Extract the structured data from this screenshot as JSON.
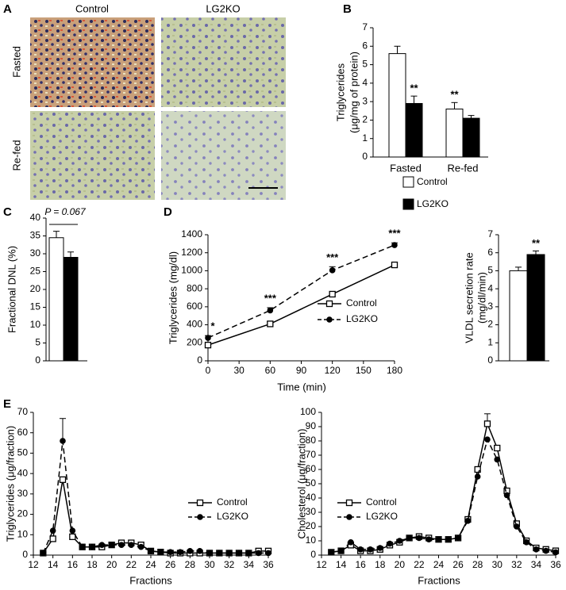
{
  "panel_labels": [
    "A",
    "B",
    "C",
    "D",
    "E"
  ],
  "micrographs": {
    "columns": [
      "Control",
      "LG2KO"
    ],
    "rows": [
      "Fasted",
      "Re-fed"
    ]
  },
  "chart_data": [
    {
      "type": "bar",
      "categories": [
        "Fasted",
        "Re-fed"
      ],
      "series": [
        {
          "name": "Control",
          "color": "#ffffff",
          "values": [
            5.6,
            2.6
          ],
          "errors": [
            0.4,
            0.35
          ]
        },
        {
          "name": "LG2KO",
          "color": "#000000",
          "values": [
            2.9,
            2.1
          ],
          "errors": [
            0.4,
            0.15
          ]
        }
      ],
      "ylim": [
        0,
        7
      ],
      "yticks": [
        0,
        1,
        2,
        3,
        4,
        5,
        6,
        7
      ],
      "ylabel": [
        "Triglycerides",
        "(μg/mg of protein)"
      ],
      "annotations": [
        "**",
        "**"
      ]
    },
    {
      "type": "bar",
      "values": [
        34.5,
        29
      ],
      "errors": [
        1.8,
        1.5
      ],
      "colors": [
        "#ffffff",
        "#000000"
      ],
      "ylim": [
        0,
        40
      ],
      "yticks": [
        0,
        5,
        10,
        15,
        20,
        25,
        30,
        35,
        40
      ],
      "ylabel": [
        "Fractional DNL (%)"
      ],
      "annotations": [
        "P = 0.067"
      ]
    },
    {
      "type": "line",
      "x": [
        0,
        60,
        120,
        180
      ],
      "series": [
        {
          "name": "Control",
          "color": "#000000",
          "marker": "square",
          "dashed": false,
          "values": [
            175,
            410,
            740,
            1065
          ],
          "errors": [
            30,
            25,
            30,
            30
          ]
        },
        {
          "name": "LG2KO",
          "color": "#000000",
          "marker": "circle",
          "dashed": true,
          "values": [
            255,
            560,
            1005,
            1285
          ],
          "errors": [
            25,
            30,
            40,
            25
          ]
        }
      ],
      "xlim": [
        0,
        180
      ],
      "xticks": [
        0,
        30,
        60,
        90,
        120,
        150,
        180
      ],
      "ylim": [
        0,
        1400
      ],
      "yticks": [
        0,
        200,
        400,
        600,
        800,
        1000,
        1200,
        1400
      ],
      "xlabel": "Time (min)",
      "ylabel": [
        "Triglycerides (mg/dl)"
      ],
      "annotations": [
        "*",
        "***",
        "***",
        "***"
      ]
    },
    {
      "type": "bar",
      "values": [
        5.0,
        5.9
      ],
      "errors": [
        0.2,
        0.2
      ],
      "colors": [
        "#ffffff",
        "#000000"
      ],
      "ylim": [
        0,
        7
      ],
      "yticks": [
        0,
        1,
        2,
        3,
        4,
        5,
        6,
        7
      ],
      "ylabel": [
        "VLDL secretion rate",
        "(mg/dl/min)"
      ],
      "annotations": [
        "**"
      ]
    },
    {
      "type": "line",
      "x": [
        13,
        14,
        15,
        16,
        17,
        18,
        19,
        20,
        21,
        22,
        23,
        24,
        25,
        26,
        27,
        28,
        29,
        30,
        31,
        32,
        33,
        34,
        35,
        36
      ],
      "series": [
        {
          "name": "Control",
          "color": "#000000",
          "marker": "square",
          "dashed": false,
          "values": [
            1,
            8,
            37,
            9,
            4,
            4,
            4,
            5,
            6,
            6,
            5,
            2,
            1.5,
            1,
            1,
            1,
            1,
            1,
            1,
            1,
            1,
            1,
            2,
            2
          ]
        },
        {
          "name": "LG2KO",
          "color": "#000000",
          "marker": "circle",
          "dashed": true,
          "values": [
            1,
            12,
            56,
            12,
            4,
            4,
            5,
            5,
            5,
            5,
            4,
            2,
            1.5,
            1.5,
            1.5,
            2,
            2,
            1,
            1,
            1,
            1,
            1,
            1,
            1
          ],
          "errors": [
            null,
            null,
            11,
            null,
            null,
            null,
            null,
            null,
            null,
            null,
            null,
            null,
            null,
            null,
            null,
            null,
            null,
            null,
            null,
            null,
            null,
            null,
            null,
            null
          ]
        }
      ],
      "xlim": [
        12,
        36
      ],
      "xticks": [
        12,
        14,
        16,
        18,
        20,
        22,
        24,
        26,
        28,
        30,
        32,
        34,
        36
      ],
      "ylim": [
        0,
        70
      ],
      "yticks": [
        0,
        10,
        20,
        30,
        40,
        50,
        60,
        70
      ],
      "xlabel": "Fractions",
      "ylabel": [
        "Triglycerides (μg/fraction)"
      ]
    },
    {
      "type": "line",
      "x": [
        13,
        14,
        15,
        16,
        17,
        18,
        19,
        20,
        21,
        22,
        23,
        24,
        25,
        26,
        27,
        28,
        29,
        30,
        31,
        32,
        33,
        34,
        35,
        36
      ],
      "series": [
        {
          "name": "Control",
          "color": "#000000",
          "marker": "square",
          "dashed": false,
          "values": [
            2,
            3,
            7,
            3,
            3,
            4,
            7,
            9,
            12,
            13,
            12,
            11,
            11,
            12,
            25,
            60,
            92,
            75,
            45,
            22,
            10,
            5,
            4,
            3
          ],
          "errors": [
            null,
            null,
            null,
            null,
            null,
            null,
            null,
            null,
            null,
            null,
            null,
            null,
            null,
            null,
            null,
            null,
            7,
            null,
            null,
            null,
            null,
            null,
            null,
            null
          ]
        },
        {
          "name": "LG2KO",
          "color": "#000000",
          "marker": "circle",
          "dashed": true,
          "values": [
            2,
            3,
            9,
            4,
            4,
            5,
            8,
            10,
            12,
            12,
            11,
            11,
            11,
            12,
            24,
            55,
            81,
            67,
            42,
            20,
            9,
            4,
            3,
            2
          ]
        }
      ],
      "xlim": [
        12,
        36
      ],
      "xticks": [
        12,
        14,
        16,
        18,
        20,
        22,
        24,
        26,
        28,
        30,
        32,
        34,
        36
      ],
      "ylim": [
        0,
        100
      ],
      "yticks": [
        0,
        10,
        20,
        30,
        40,
        50,
        60,
        70,
        80,
        90,
        100
      ],
      "xlabel": "Fractions",
      "ylabel": [
        "Cholesterol (μg/fraction)"
      ]
    }
  ]
}
